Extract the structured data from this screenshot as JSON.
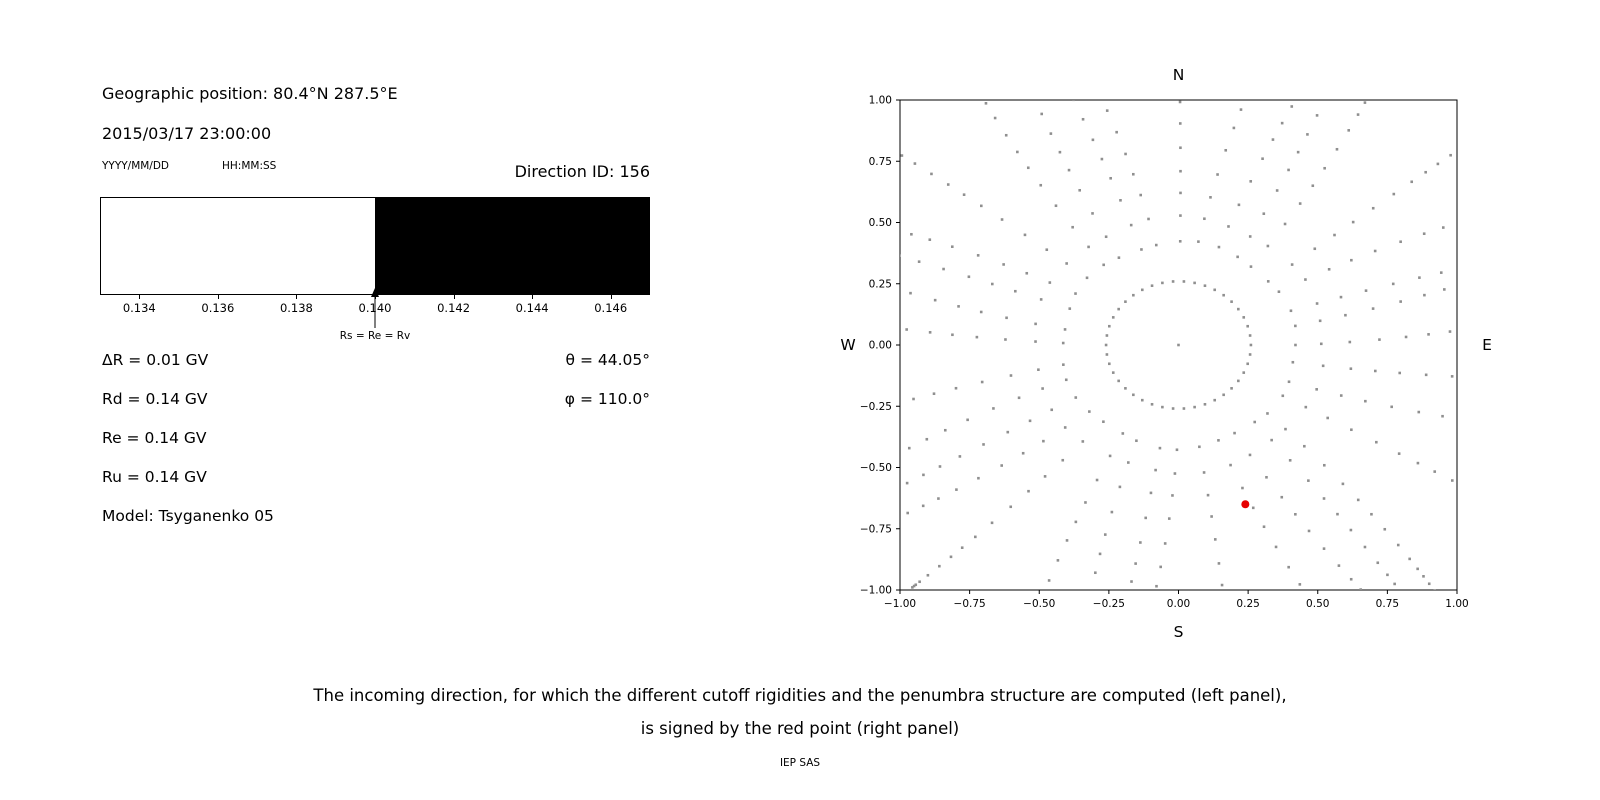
{
  "page": {
    "caption_line1": "The incoming direction, for which the different cutoff rigidities and the penumbra structure are computed (left panel),",
    "caption_line2": "is signed by the red point (right panel)",
    "credit": "IEP SAS"
  },
  "left_panel": {
    "geo_position": "Geographic position: 80.4°N 287.5°E",
    "datetime": "2015/03/17 23:00:00",
    "date_format_label": "YYYY/MM/DD",
    "time_format_label": "HH:MM:SS",
    "direction_id": "Direction ID: 156",
    "info_lines": [
      "ΔR = 0.01 GV",
      "Rd = 0.14 GV",
      "Re = 0.14 GV",
      "Ru = 0.14 GV",
      "Model: Tsyganenko 05"
    ],
    "theta_label": "θ = 44.05°",
    "phi_label": "φ = 110.0°"
  },
  "chart_data": [
    {
      "type": "bar",
      "panel": "left-penumbra-band",
      "xlim": [
        0.133,
        0.147
      ],
      "xticks": [
        0.134,
        0.136,
        0.138,
        0.14,
        0.142,
        0.144,
        0.146
      ],
      "segments": [
        {
          "from": 0.133,
          "to": 0.14,
          "color": "#ffffff"
        },
        {
          "from": 0.14,
          "to": 0.147,
          "color": "#000000"
        }
      ],
      "marker": {
        "x": 0.14,
        "label": "Rs = Re = Rv"
      }
    },
    {
      "type": "scatter",
      "panel": "right-direction-map",
      "xlim": [
        -1.0,
        1.0
      ],
      "ylim": [
        -1.0,
        1.0
      ],
      "xticks": [
        -1.0,
        -0.75,
        -0.5,
        -0.25,
        0.0,
        0.25,
        0.5,
        0.75,
        1.0
      ],
      "yticks": [
        -1.0,
        -0.75,
        -0.5,
        -0.25,
        0.0,
        0.25,
        0.5,
        0.75,
        1.0
      ],
      "direction_labels": {
        "top": "N",
        "bottom": "S",
        "left": "W",
        "right": "E"
      },
      "dot_color": "#8f8f8f",
      "red_point": {
        "x": 0.24,
        "y": -0.65,
        "color": "#e60000"
      },
      "pattern": {
        "n_spokes": 36,
        "ring_radius": 0.26,
        "ring_points": 42,
        "spoke_r_start": 0.42,
        "spoke_r_end": 1.38,
        "spoke_points": 16,
        "curvature": 0.12,
        "center_dot": true
      }
    }
  ]
}
